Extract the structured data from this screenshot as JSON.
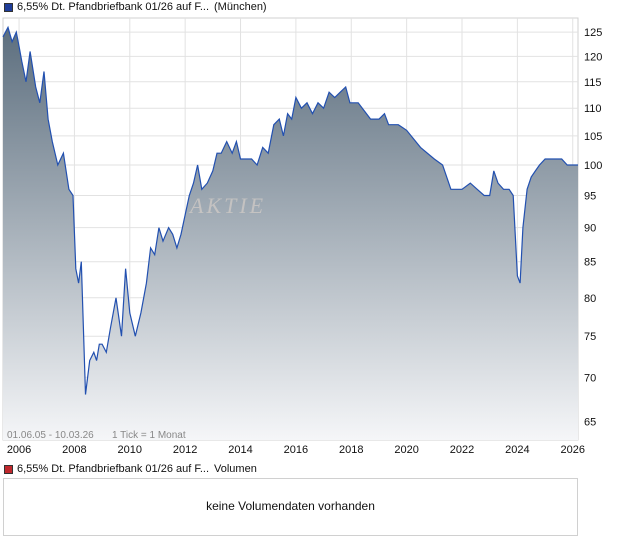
{
  "price_legend": {
    "name": "6,55% Dt. Pfandbriefbank 01/26 auf F...",
    "exchange": "(München)",
    "color": "#1f3d99"
  },
  "volume_legend": {
    "name": "6,55% Dt. Pfandbriefbank 01/26 auf F...",
    "label": "Volumen",
    "color": "#c0282d"
  },
  "watermark": "AKTIE",
  "range_info": "01.06.05 - 10.03.26",
  "tick_info": "1 Tick = 1 Monat",
  "volume_message": "keine Volumendaten vorhanden",
  "chart_data": {
    "type": "area",
    "x_ticks": [
      "2006",
      "2008",
      "2010",
      "2012",
      "2014",
      "2016",
      "2018",
      "2020",
      "2022",
      "2024",
      "2026"
    ],
    "x_tick_years": [
      2006,
      2008,
      2010,
      2012,
      2014,
      2016,
      2018,
      2020,
      2022,
      2024,
      2026
    ],
    "y_ticks": [
      65,
      70,
      75,
      80,
      85,
      90,
      95,
      100,
      105,
      110,
      115,
      120,
      125
    ],
    "scale": "log",
    "grid": true,
    "x_range": [
      2005.42,
      2026.19
    ],
    "y_range": [
      63,
      128
    ],
    "line_color": "#2250b0",
    "fill_top": "#5c6e7e",
    "fill_bottom": "#f5f6f8",
    "series": [
      {
        "x": [
          2005.42,
          2005.6,
          2005.75,
          2005.9,
          2006.0,
          2006.1,
          2006.25,
          2006.4,
          2006.6,
          2006.75,
          2006.9,
          2007.05,
          2007.2,
          2007.4,
          2007.6,
          2007.8,
          2007.95,
          2008.05,
          2008.15,
          2008.25,
          2008.4,
          2008.55,
          2008.7,
          2008.8,
          2008.9,
          2009.0,
          2009.15,
          2009.3,
          2009.5,
          2009.7,
          2009.85,
          2010.0,
          2010.2,
          2010.4,
          2010.6,
          2010.75,
          2010.9,
          2011.05,
          2011.2,
          2011.4,
          2011.55,
          2011.7,
          2011.85,
          2012.0,
          2012.15,
          2012.3,
          2012.45,
          2012.6,
          2012.8,
          2013.0,
          2013.15,
          2013.3,
          2013.5,
          2013.7,
          2013.85,
          2014.0,
          2014.2,
          2014.4,
          2014.6,
          2014.8,
          2015.0,
          2015.2,
          2015.4,
          2015.55,
          2015.7,
          2015.85,
          2016.0,
          2016.2,
          2016.4,
          2016.6,
          2016.8,
          2017.0,
          2017.2,
          2017.4,
          2017.6,
          2017.8,
          2017.95,
          2018.1,
          2018.25,
          2018.4,
          2018.55,
          2018.7,
          2018.85,
          2019.0,
          2019.2,
          2019.35,
          2019.5,
          2019.7,
          2020.0,
          2020.5,
          2021.0,
          2021.3,
          2021.6,
          2022.0,
          2022.3,
          2022.55,
          2022.8,
          2023.0,
          2023.15,
          2023.3,
          2023.5,
          2023.7,
          2023.85,
          2024.0,
          2024.1,
          2024.2,
          2024.35,
          2024.5,
          2024.65,
          2024.8,
          2025.0,
          2025.2,
          2025.4,
          2025.6,
          2025.8,
          2026.0,
          2026.19
        ],
        "y": [
          124,
          126,
          123,
          125,
          122,
          119,
          115,
          121,
          114,
          111,
          117,
          108,
          104,
          100,
          102,
          96,
          95,
          84,
          82,
          85,
          68,
          72,
          73,
          72,
          74,
          74,
          73,
          76,
          80,
          75,
          84,
          78,
          75,
          78,
          82,
          87,
          86,
          90,
          88,
          90,
          89,
          87,
          89,
          92,
          95,
          97,
          100,
          96,
          97,
          99,
          102,
          102,
          104,
          102,
          104,
          101,
          101,
          101,
          100,
          103,
          102,
          107,
          108,
          105,
          109,
          108,
          112,
          110,
          111,
          109,
          111,
          110,
          113,
          112,
          113,
          114,
          111,
          111,
          111,
          110,
          109,
          108,
          108,
          108,
          109,
          107,
          107,
          107,
          106,
          103,
          101,
          100,
          96,
          96,
          97,
          96,
          95,
          95,
          99,
          97,
          96,
          96,
          95,
          83,
          82,
          90,
          96,
          98,
          99,
          100,
          101,
          101,
          101,
          101,
          100,
          100,
          100
        ]
      }
    ]
  }
}
